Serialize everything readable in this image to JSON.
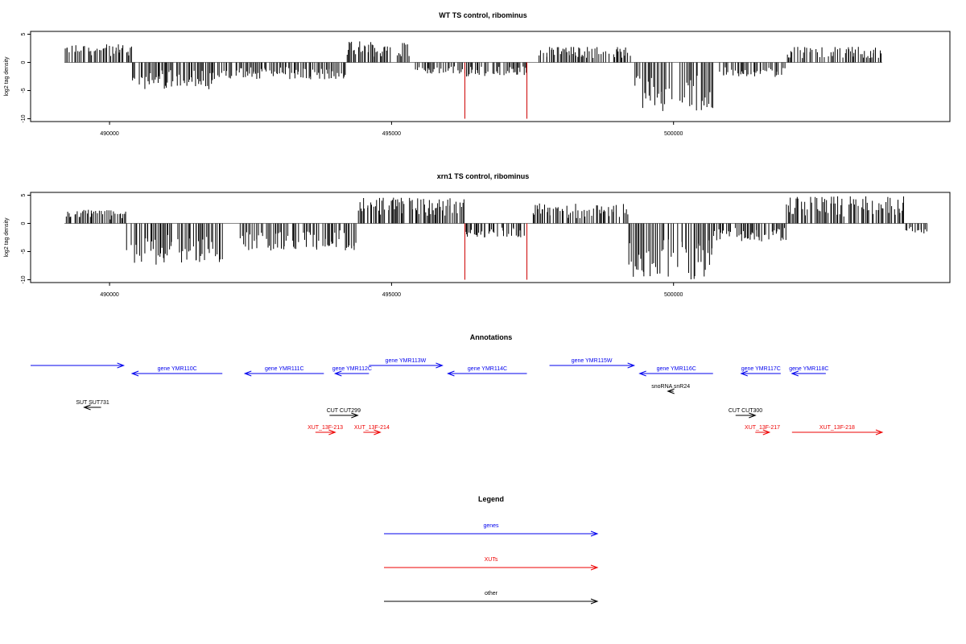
{
  "chart_data": [
    {
      "type": "bar",
      "title": "WT TS control, ribominus",
      "xlabel": "",
      "ylabel": "log2 tag density",
      "yticks": [
        5,
        0,
        -5,
        -10
      ],
      "ylim": [
        -10.5,
        5.5
      ],
      "xticks": [
        490000,
        495000,
        500000
      ],
      "xlim": [
        488600,
        504900
      ],
      "baseline": 0,
      "highlight": {
        "positions": [
          496300,
          497400
        ],
        "value": -10,
        "color": "#cc0000"
      },
      "segments": [
        {
          "start": 489200,
          "end": 490400,
          "sign": 1,
          "max": 3.2
        },
        {
          "start": 490400,
          "end": 491900,
          "sign": -1,
          "max": 4.8
        },
        {
          "start": 491900,
          "end": 494200,
          "sign": -1,
          "max": 3.0
        },
        {
          "start": 494200,
          "end": 495400,
          "sign": 1,
          "max": 3.8
        },
        {
          "start": 495400,
          "end": 496100,
          "sign": -1,
          "max": 2.0
        },
        {
          "start": 496100,
          "end": 497400,
          "sign": -1,
          "max": 2.5
        },
        {
          "start": 497600,
          "end": 499300,
          "sign": 1,
          "max": 2.8
        },
        {
          "start": 499300,
          "end": 500000,
          "sign": -1,
          "max": 8.8
        },
        {
          "start": 500100,
          "end": 500700,
          "sign": -1,
          "max": 9.3
        },
        {
          "start": 500800,
          "end": 502000,
          "sign": -1,
          "max": 2.6
        },
        {
          "start": 502000,
          "end": 503700,
          "sign": 1,
          "max": 2.8
        }
      ]
    },
    {
      "type": "bar",
      "title": "xrn1 TS control, ribominus",
      "xlabel": "",
      "ylabel": "log2 tag density",
      "yticks": [
        5,
        0,
        -5,
        -10
      ],
      "ylim": [
        -10.5,
        5.5
      ],
      "xticks": [
        490000,
        495000,
        500000
      ],
      "xlim": [
        488600,
        504900
      ],
      "baseline": 0,
      "highlight": {
        "positions": [
          496300,
          497400
        ],
        "value": -10,
        "color": "#cc0000"
      },
      "segments": [
        {
          "start": 489200,
          "end": 490300,
          "sign": 1,
          "max": 2.5
        },
        {
          "start": 490300,
          "end": 492000,
          "sign": -1,
          "max": 7.5
        },
        {
          "start": 492300,
          "end": 494400,
          "sign": -1,
          "max": 4.8
        },
        {
          "start": 494400,
          "end": 496300,
          "sign": 1,
          "max": 4.6
        },
        {
          "start": 496300,
          "end": 497400,
          "sign": -1,
          "max": 2.5
        },
        {
          "start": 497500,
          "end": 499200,
          "sign": 1,
          "max": 3.6
        },
        {
          "start": 499200,
          "end": 500000,
          "sign": -1,
          "max": 9.8
        },
        {
          "start": 500000,
          "end": 500700,
          "sign": -1,
          "max": 10.0
        },
        {
          "start": 500700,
          "end": 502000,
          "sign": -1,
          "max": 3.2
        },
        {
          "start": 502000,
          "end": 504100,
          "sign": 1,
          "max": 4.8
        },
        {
          "start": 504100,
          "end": 504500,
          "sign": -1,
          "max": 1.8
        }
      ]
    }
  ],
  "annotations": {
    "title": "Annotations",
    "colors": {
      "genes": "#0000ee",
      "XUTs": "#ee0000",
      "other": "#000000"
    },
    "features": [
      {
        "label": "",
        "kind": "genes",
        "strand": "+",
        "start": 488600,
        "end": 490250,
        "row": 0
      },
      {
        "label": "gene YMR110C",
        "kind": "genes",
        "strand": "-",
        "start": 490400,
        "end": 492000,
        "row": 1
      },
      {
        "label": "gene YMR111C",
        "kind": "genes",
        "strand": "-",
        "start": 492400,
        "end": 493800,
        "row": 1
      },
      {
        "label": "gene YMR112C",
        "kind": "genes",
        "strand": "-",
        "start": 494000,
        "end": 494600,
        "row": 1
      },
      {
        "label": "gene YMR113W",
        "kind": "genes",
        "strand": "+",
        "start": 494600,
        "end": 495900,
        "row": 0
      },
      {
        "label": "gene YMR114C",
        "kind": "genes",
        "strand": "-",
        "start": 496000,
        "end": 497400,
        "row": 1
      },
      {
        "label": "gene YMR115W",
        "kind": "genes",
        "strand": "+",
        "start": 497800,
        "end": 499300,
        "row": 0
      },
      {
        "label": "gene YMR116C",
        "kind": "genes",
        "strand": "-",
        "start": 499400,
        "end": 500700,
        "row": 1
      },
      {
        "label": "gene YMR117C",
        "kind": "genes",
        "strand": "-",
        "start": 501200,
        "end": 501900,
        "row": 1
      },
      {
        "label": "gene YMR118C",
        "kind": "genes",
        "strand": "-",
        "start": 502100,
        "end": 502700,
        "row": 1
      },
      {
        "label": "snoRNA snR24",
        "kind": "other",
        "strand": "-",
        "start": 499900,
        "end": 500000,
        "row": 2
      },
      {
        "label": "SUT SUT731",
        "kind": "other",
        "strand": "-",
        "start": 489550,
        "end": 489850,
        "row": 3
      },
      {
        "label": "CUT CUT299",
        "kind": "other",
        "strand": "+",
        "start": 493900,
        "end": 494400,
        "row": 4
      },
      {
        "label": "CUT CUT300",
        "kind": "other",
        "strand": "+",
        "start": 501100,
        "end": 501450,
        "row": 4
      },
      {
        "label": "XUT_13F-213",
        "kind": "XUTs",
        "strand": "+",
        "start": 493650,
        "end": 494000,
        "row": 5
      },
      {
        "label": "XUT_13F-214",
        "kind": "XUTs",
        "strand": "+",
        "start": 494500,
        "end": 494800,
        "row": 5
      },
      {
        "label": "XUT_13F-217",
        "kind": "XUTs",
        "strand": "+",
        "start": 501450,
        "end": 501700,
        "row": 5
      },
      {
        "label": "XUT_13F-218",
        "kind": "XUTs",
        "strand": "+",
        "start": 502100,
        "end": 503700,
        "row": 5
      }
    ]
  },
  "legend": {
    "title": "Legend",
    "items": [
      {
        "label": "genes",
        "color": "#0000ee"
      },
      {
        "label": "XUTs",
        "color": "#ee0000"
      },
      {
        "label": "other",
        "color": "#000000"
      }
    ]
  }
}
